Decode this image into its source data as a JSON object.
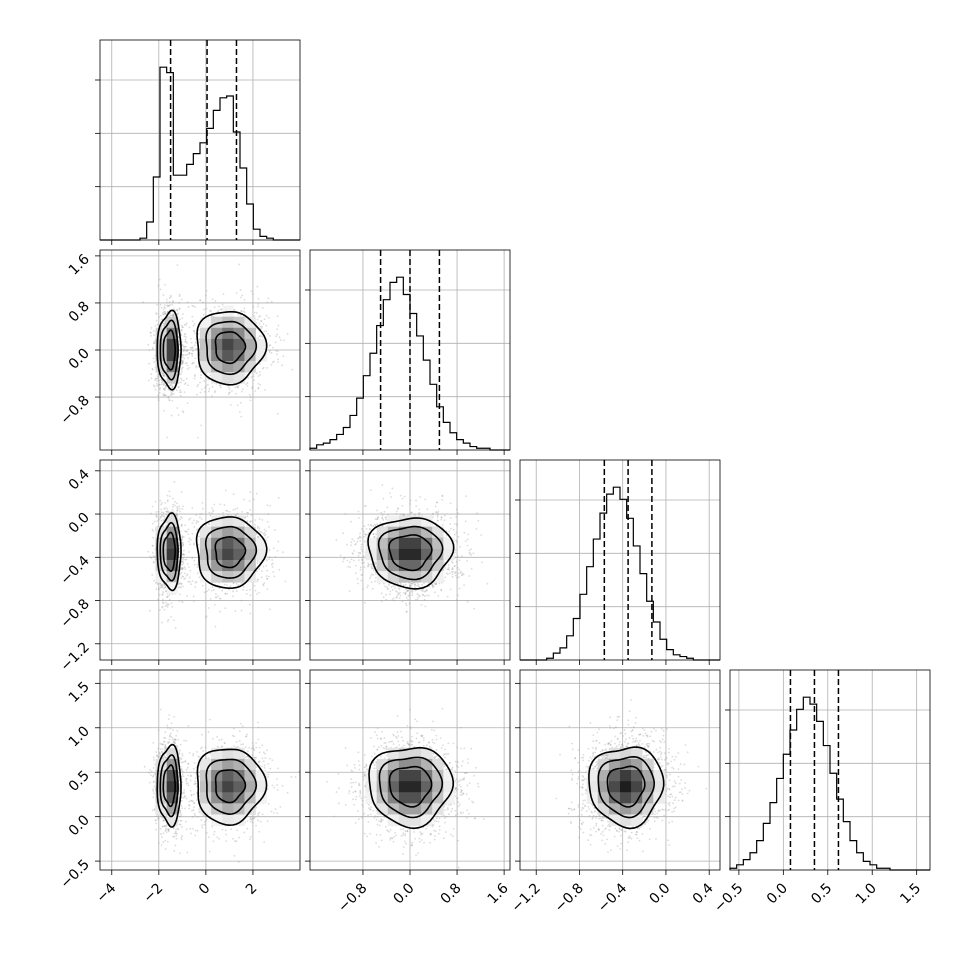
{
  "chart_data": {
    "type": "corner",
    "grid": true,
    "parameters": [
      {
        "range": [
          -4.5,
          4.0
        ],
        "ticks": [
          -4,
          -2,
          0,
          2
        ],
        "tick_labels": [
          "−4",
          "−2",
          "0",
          "2"
        ]
      },
      {
        "range": [
          -1.7,
          1.7
        ],
        "ticks": [
          -0.8,
          0.0,
          0.8,
          1.6
        ],
        "tick_labels": [
          "−0.8",
          "0.0",
          "0.8",
          "1.6"
        ]
      },
      {
        "range": [
          -1.35,
          0.5
        ],
        "ticks": [
          -1.2,
          -0.8,
          -0.4,
          0.0,
          0.4
        ],
        "tick_labels": [
          "−1.2",
          "−0.8",
          "−0.4",
          "0.0",
          "0.4"
        ]
      },
      {
        "range": [
          -0.6,
          1.65
        ],
        "ticks": [
          -0.5,
          0.0,
          0.5,
          1.0,
          1.5
        ],
        "tick_labels": [
          "−0.5",
          "0.0",
          "0.5",
          "1.0",
          "1.5"
        ]
      }
    ],
    "histograms": [
      {
        "param": 0,
        "bins": [
          -4.5,
          4.0
        ],
        "counts": [
          0,
          0,
          0,
          0,
          0,
          0,
          0.01,
          0.1,
          0.35,
          0.96,
          0.93,
          0.36,
          0.36,
          0.42,
          0.48,
          0.54,
          0.62,
          0.72,
          0.79,
          0.8,
          0.6,
          0.4,
          0.2,
          0.06,
          0.02,
          0.01,
          0,
          0,
          0,
          0
        ],
        "quantiles": [
          -1.5,
          0.05,
          1.3
        ]
      },
      {
        "param": 1,
        "bins": [
          -1.7,
          1.7
        ],
        "counts": [
          0.01,
          0.03,
          0.04,
          0.06,
          0.09,
          0.13,
          0.2,
          0.3,
          0.43,
          0.56,
          0.72,
          0.87,
          0.97,
          1.0,
          0.9,
          0.79,
          0.66,
          0.52,
          0.38,
          0.25,
          0.16,
          0.1,
          0.06,
          0.04,
          0.02,
          0.01,
          0.01,
          0,
          0,
          0
        ],
        "quantiles": [
          -0.5,
          0.0,
          0.5
        ]
      },
      {
        "param": 2,
        "bins": [
          -1.35,
          0.5
        ],
        "counts": [
          0,
          0,
          0,
          0,
          0.01,
          0.04,
          0.07,
          0.14,
          0.24,
          0.38,
          0.54,
          0.7,
          0.85,
          0.96,
          1.0,
          0.93,
          0.82,
          0.66,
          0.5,
          0.34,
          0.22,
          0.12,
          0.06,
          0.03,
          0.02,
          0.01,
          0,
          0,
          0,
          0
        ],
        "quantiles": [
          -0.57,
          -0.35,
          -0.13
        ]
      },
      {
        "param": 3,
        "bins": [
          -0.6,
          1.65
        ],
        "counts": [
          0.01,
          0.03,
          0.06,
          0.1,
          0.17,
          0.27,
          0.39,
          0.53,
          0.67,
          0.81,
          0.93,
          1.0,
          0.96,
          0.86,
          0.72,
          0.56,
          0.41,
          0.28,
          0.17,
          0.1,
          0.05,
          0.03,
          0.01,
          0.01,
          0,
          0,
          0,
          0,
          0,
          0
        ],
        "quantiles": [
          0.08,
          0.35,
          0.62
        ]
      }
    ],
    "pairs": [
      {
        "x": 0,
        "y": 1,
        "modes": [
          {
            "cx": -1.55,
            "cy": 0.0,
            "sx": 0.25,
            "sy": 0.32,
            "w": 1.0
          },
          {
            "cx": 1.0,
            "cy": 0.05,
            "sx": 0.75,
            "sy": 0.32,
            "w": 0.85
          }
        ]
      },
      {
        "x": 0,
        "y": 2,
        "modes": [
          {
            "cx": -1.55,
            "cy": -0.35,
            "sx": 0.25,
            "sy": 0.17,
            "w": 1.0
          },
          {
            "cx": 1.0,
            "cy": -0.35,
            "sx": 0.75,
            "sy": 0.17,
            "w": 0.85
          }
        ]
      },
      {
        "x": 1,
        "y": 2,
        "modes": [
          {
            "cx": 0.0,
            "cy": -0.35,
            "sx": 0.35,
            "sy": 0.16,
            "w": 1.0
          }
        ]
      },
      {
        "x": 0,
        "y": 3,
        "modes": [
          {
            "cx": -1.55,
            "cy": 0.35,
            "sx": 0.25,
            "sy": 0.22,
            "w": 1.0
          },
          {
            "cx": 1.0,
            "cy": 0.35,
            "sx": 0.75,
            "sy": 0.22,
            "w": 0.85
          }
        ]
      },
      {
        "x": 1,
        "y": 3,
        "modes": [
          {
            "cx": 0.0,
            "cy": 0.35,
            "sx": 0.35,
            "sy": 0.22,
            "w": 1.0
          }
        ]
      },
      {
        "x": 2,
        "y": 3,
        "modes": [
          {
            "cx": -0.37,
            "cy": 0.35,
            "sx": 0.17,
            "sy": 0.22,
            "w": 1.0
          }
        ]
      }
    ],
    "contour_levels": [
      0.6,
      0.32,
      0.13
    ]
  }
}
